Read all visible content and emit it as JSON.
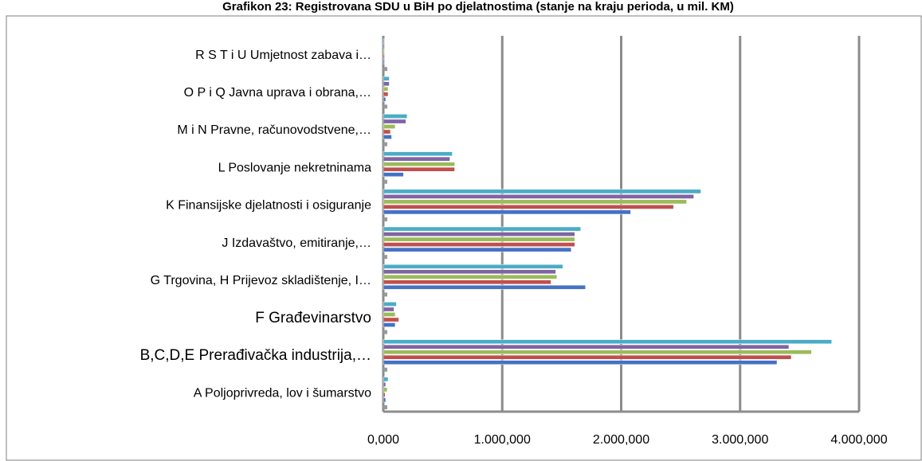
{
  "chart_data": {
    "type": "hbar",
    "title": "Grafikon 23: Registrovana SDU u BiH po djelatnostima (stanje na kraju perioda, u mil. KM)",
    "categories": [
      "A Poljoprivreda, lov i šumarstvo",
      "B,C,D,E Prerađivačka industrija,…",
      "F Građevinarstvo",
      "G Trgovina, H Prijevoz skladištenje, I…",
      "J Izdavaštvo, emitiranje,…",
      "K Finansijske djelatnosti i osiguranje",
      "L Poslovanje nekretninama",
      "M i N Pravne, računovodstvene,…",
      "O P i Q Javna uprava i obrana,…",
      "R S T i U Umjetnost zabava i…"
    ],
    "series": [
      {
        "color": "#4472c4",
        "values": [
          20000,
          3310000,
          100000,
          1700000,
          1580000,
          2080000,
          170000,
          70000,
          20000,
          10000
        ]
      },
      {
        "color": "#c0504d",
        "values": [
          15000,
          3430000,
          130000,
          1410000,
          1610000,
          2440000,
          600000,
          60000,
          40000,
          10000
        ]
      },
      {
        "color": "#9bbb59",
        "values": [
          33000,
          3600000,
          100000,
          1460000,
          1610000,
          2550000,
          600000,
          100000,
          40000,
          10000
        ]
      },
      {
        "color": "#8064a2",
        "values": [
          20000,
          3410000,
          90000,
          1450000,
          1610000,
          2610000,
          560000,
          190000,
          50000,
          10000
        ]
      },
      {
        "color": "#4bacc6",
        "values": [
          40000,
          3770000,
          110000,
          1510000,
          1660000,
          2670000,
          580000,
          200000,
          50000,
          10000
        ]
      }
    ],
    "xlim": [
      0,
      4000000
    ],
    "xticks": [
      {
        "value": 0,
        "label": "0,000"
      },
      {
        "value": 1000000,
        "label": "1.000,000"
      },
      {
        "value": 2000000,
        "label": "2.000,000"
      },
      {
        "value": 3000000,
        "label": "3.000,000"
      },
      {
        "value": 4000000,
        "label": "4.000,000"
      }
    ],
    "grid": true
  }
}
